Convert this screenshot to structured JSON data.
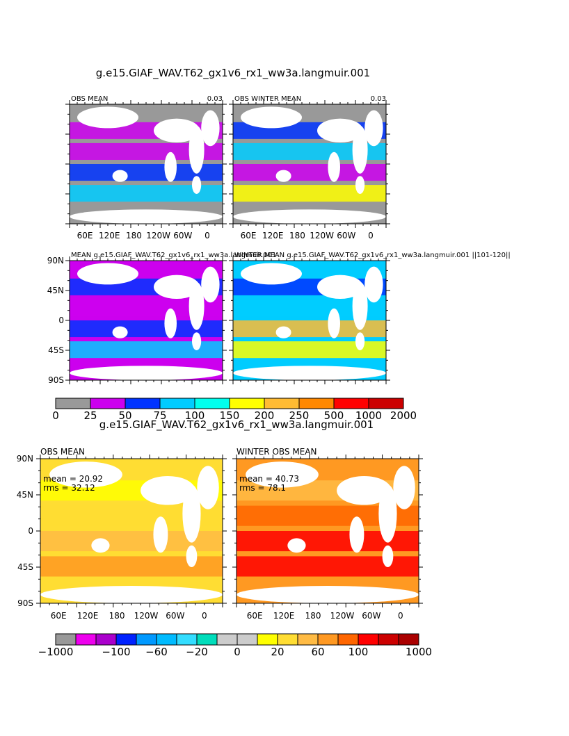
{
  "figure_1": {
    "title": "g.e15.GIAF_WAV.T62_gx1v6_rx1_ww3a.langmuir.001",
    "panels": [
      {
        "left_label": "OBS MEAN",
        "right_label": "0.03"
      },
      {
        "left_label": "OBS WINTER MEAN",
        "right_label": "0.03"
      },
      {
        "left_label": "MEAN  g.e15.GIAF_WAV.T62_gx1v6_rx1_ww3a.langmuir.001"
      },
      {
        "left_label": "WINTER MEAN g.e15.GIAF_WAV.T62_gx1v6_rx1_ww3a.langmuir.001  ||101-120||"
      }
    ],
    "lon_labels": [
      "60E",
      "120E",
      "180",
      "120W",
      "60W",
      "0"
    ],
    "lat_labels": [
      "90N",
      "45N",
      "0",
      "45S",
      "90S"
    ],
    "colorbar": {
      "colors": [
        "#999999",
        "#cc00ee",
        "#0033ff",
        "#00ccff",
        "#00ffee",
        "#ffff00",
        "#ffbb33",
        "#ff8800",
        "#ff0000",
        "#cc0000"
      ],
      "labels": [
        "0",
        "25",
        "50",
        "75",
        "100",
        "150",
        "200",
        "250",
        "500",
        "1000",
        "2000"
      ]
    }
  },
  "figure_2": {
    "title": "g.e15.GIAF_WAV.T62_gx1v6_rx1_ww3a.langmuir.001",
    "panels": [
      {
        "left_label": "OBS MEAN",
        "stats": [
          "mean = 20.92",
          "rms = 32.12"
        ]
      },
      {
        "left_label": "WINTER OBS MEAN",
        "stats": [
          "mean = 40.73",
          "rms = 78.1"
        ]
      }
    ],
    "lon_labels": [
      "60E",
      "120E",
      "180",
      "120W",
      "60W",
      "0"
    ],
    "lat_labels": [
      "90N",
      "45N",
      "0",
      "45S",
      "90S"
    ],
    "colorbar": {
      "colors": [
        "#999999",
        "#ee00ee",
        "#aa00cc",
        "#0022ff",
        "#0099ff",
        "#00bbff",
        "#33ddff",
        "#00ddbb",
        "#cccccc",
        "#cccccc",
        "#ffff00",
        "#ffdd33",
        "#ffbb44",
        "#ff9922",
        "#ff6600",
        "#ff0000",
        "#cc0000",
        "#aa0000"
      ],
      "labels": [
        "−1000",
        "−100",
        "−60",
        "−20",
        "0",
        "20",
        "60",
        "100",
        "1000"
      ]
    }
  }
}
